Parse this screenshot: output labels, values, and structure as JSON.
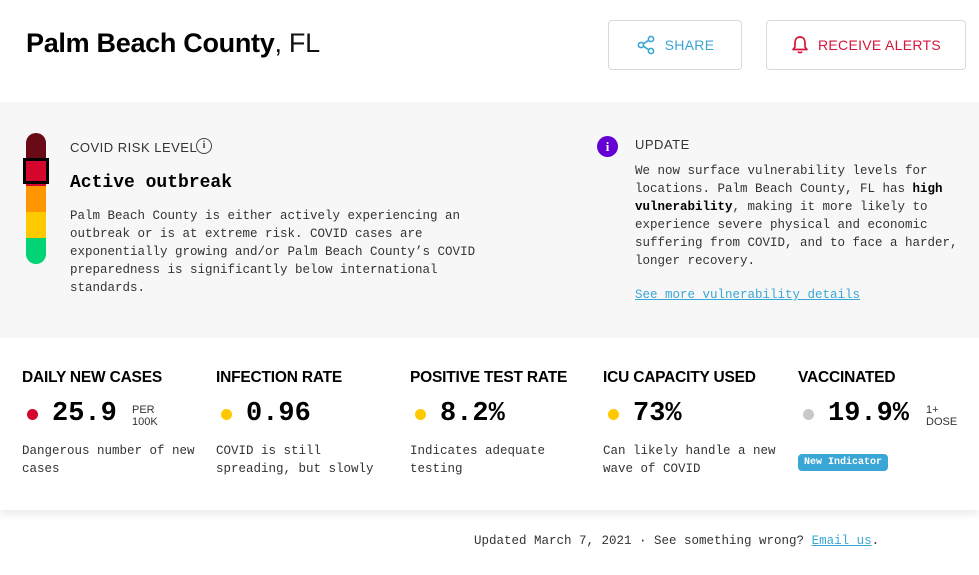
{
  "header": {
    "county": "Palm Beach County",
    "state": ", FL",
    "share_label": "SHARE",
    "alerts_label": "RECEIVE ALERTS"
  },
  "risk": {
    "label": "COVID RISK LEVEL",
    "level": "Active outbreak",
    "description": "Palm Beach County is either actively experiencing an outbreak or is at extreme risk. COVID cases are exponentially growing and/or Palm Beach County’s COVID preparedness is significantly below international standards.",
    "colors": [
      "#6b0a17",
      "#d4062e",
      "#ff9600",
      "#ffc900",
      "#00d474"
    ]
  },
  "update": {
    "label": "UPDATE",
    "text_before": "We now surface vulnerability levels for locations. Palm Beach County, FL has ",
    "text_bold": "high vulnerability",
    "text_after": ", making it more likely to experience severe physical and economic suffering from COVID, and to face a harder, longer recovery.",
    "link": "See more vulnerability details"
  },
  "metrics": [
    {
      "title": "DAILY NEW CASES",
      "value": "25.9",
      "unit_line1": "PER",
      "unit_line2": "100K",
      "color": "#d4062e",
      "desc": "Dangerous number of new cases"
    },
    {
      "title": "INFECTION RATE",
      "value": "0.96",
      "unit_line1": "",
      "unit_line2": "",
      "color": "#ffc900",
      "desc": "COVID is still spreading, but slowly"
    },
    {
      "title": "POSITIVE TEST RATE",
      "value": "8.2%",
      "unit_line1": "",
      "unit_line2": "",
      "color": "#ffc900",
      "desc": "Indicates adequate testing"
    },
    {
      "title": "ICU CAPACITY USED",
      "value": "73%",
      "unit_line1": "",
      "unit_line2": "",
      "color": "#ffc900",
      "desc": "Can likely handle a new wave of COVID"
    },
    {
      "title": "VACCINATED",
      "value": "19.9%",
      "unit_line1": "1+",
      "unit_line2": "DOSE",
      "color": "#c8c8c8",
      "badge": "New Indicator"
    }
  ],
  "footer": {
    "text": "Updated March 7, 2021 · See something wrong? ",
    "link": "Email us",
    "end": "."
  }
}
